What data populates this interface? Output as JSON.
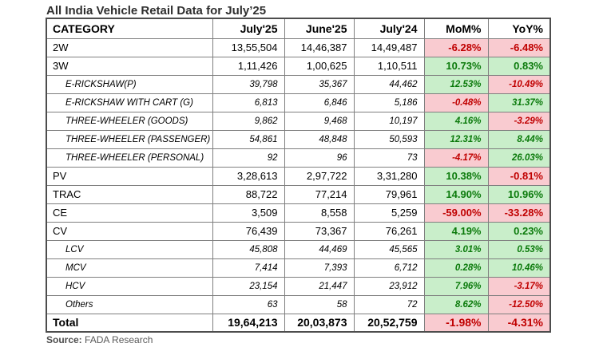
{
  "title": "All India Vehicle Retail Data for July’25",
  "colors": {
    "positive_bg": "#c9eeca",
    "positive_text": "#0b7a0b",
    "negative_bg": "#f9cbd0",
    "negative_text": "#c00000",
    "border_inner": "#7f7f7f",
    "border_outer": "#4d4d4d"
  },
  "chart_data": {
    "type": "table",
    "title": "All India Vehicle Retail Data for July’25",
    "columns": [
      "CATEGORY",
      "July'25",
      "June'25",
      "July'24",
      "MoM%",
      "YoY%"
    ],
    "rows": [
      {
        "category": "2W",
        "level": "main",
        "values": [
          "13,55,504",
          "14,46,387",
          "14,49,487"
        ],
        "mom": "-6.28%",
        "yoy": "-6.48%"
      },
      {
        "category": "3W",
        "level": "main",
        "values": [
          "1,11,426",
          "1,00,625",
          "1,10,511"
        ],
        "mom": "10.73%",
        "yoy": "0.83%"
      },
      {
        "category": "E-RICKSHAW(P)",
        "level": "sub",
        "values": [
          "39,798",
          "35,367",
          "44,462"
        ],
        "mom": "12.53%",
        "yoy": "-10.49%"
      },
      {
        "category": "E-RICKSHAW WITH CART (G)",
        "level": "sub",
        "values": [
          "6,813",
          "6,846",
          "5,186"
        ],
        "mom": "-0.48%",
        "yoy": "31.37%"
      },
      {
        "category": "THREE-WHEELER (GOODS)",
        "level": "sub",
        "values": [
          "9,862",
          "9,468",
          "10,197"
        ],
        "mom": "4.16%",
        "yoy": "-3.29%"
      },
      {
        "category": "THREE-WHEELER (PASSENGER)",
        "level": "sub",
        "values": [
          "54,861",
          "48,848",
          "50,593"
        ],
        "mom": "12.31%",
        "yoy": "8.44%"
      },
      {
        "category": "THREE-WHEELER (PERSONAL)",
        "level": "sub",
        "values": [
          "92",
          "96",
          "73"
        ],
        "mom": "-4.17%",
        "yoy": "26.03%"
      },
      {
        "category": "PV",
        "level": "main",
        "values": [
          "3,28,613",
          "2,97,722",
          "3,31,280"
        ],
        "mom": "10.38%",
        "yoy": "-0.81%"
      },
      {
        "category": "TRAC",
        "level": "main",
        "values": [
          "88,722",
          "77,214",
          "79,961"
        ],
        "mom": "14.90%",
        "yoy": "10.96%"
      },
      {
        "category": "CE",
        "level": "main",
        "values": [
          "3,509",
          "8,558",
          "5,259"
        ],
        "mom": "-59.00%",
        "yoy": "-33.28%"
      },
      {
        "category": "CV",
        "level": "main",
        "values": [
          "76,439",
          "73,367",
          "76,261"
        ],
        "mom": "4.19%",
        "yoy": "0.23%"
      },
      {
        "category": "LCV",
        "level": "sub",
        "values": [
          "45,808",
          "44,469",
          "45,565"
        ],
        "mom": "3.01%",
        "yoy": "0.53%"
      },
      {
        "category": "MCV",
        "level": "sub",
        "values": [
          "7,414",
          "7,393",
          "6,712"
        ],
        "mom": "0.28%",
        "yoy": "10.46%"
      },
      {
        "category": "HCV",
        "level": "sub",
        "values": [
          "23,154",
          "21,447",
          "23,912"
        ],
        "mom": "7.96%",
        "yoy": "-3.17%"
      },
      {
        "category": "Others",
        "level": "sub",
        "values": [
          "63",
          "58",
          "72"
        ],
        "mom": "8.62%",
        "yoy": "-12.50%"
      },
      {
        "category": "Total",
        "level": "total",
        "values": [
          "19,64,213",
          "20,03,873",
          "20,52,759"
        ],
        "mom": "-1.98%",
        "yoy": "-4.31%"
      }
    ]
  },
  "source": {
    "label": "Source:",
    "text": "FADA Research"
  }
}
